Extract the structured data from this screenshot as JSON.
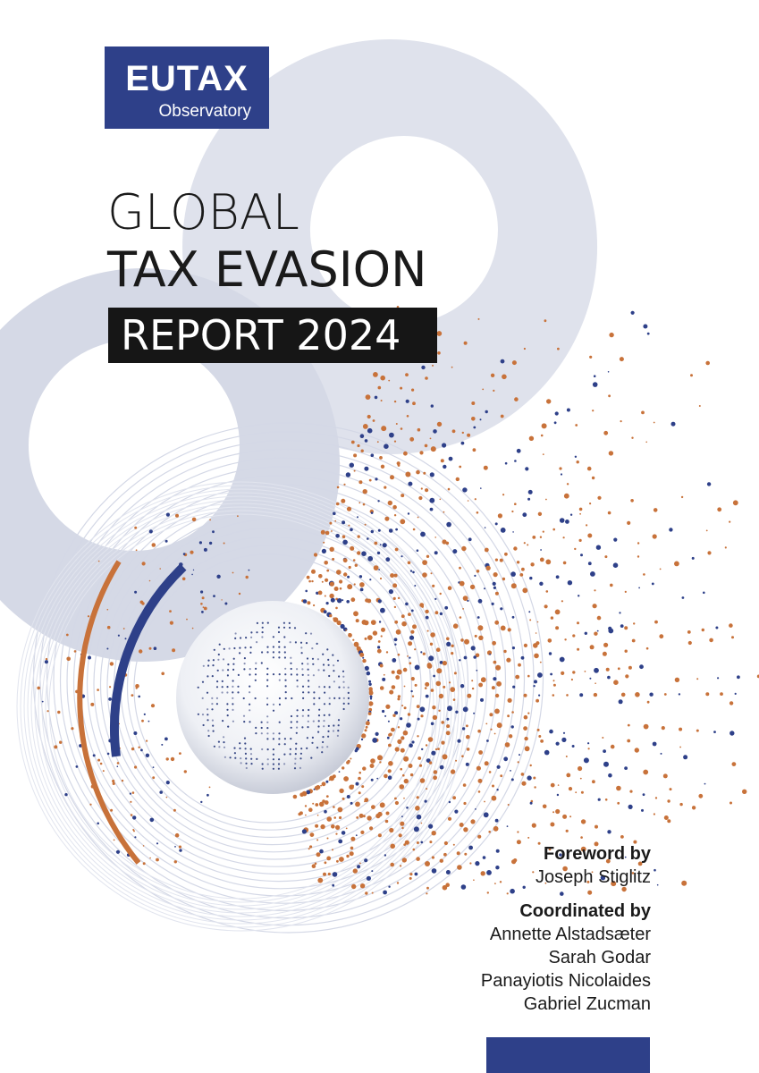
{
  "logo": {
    "main": "EUTAX",
    "sub": "Observatory"
  },
  "title": {
    "line1": "GLOBAL",
    "line2": "TAX EVASION",
    "line3": "REPORT 2024"
  },
  "credits": {
    "foreword_heading": "Foreword by",
    "foreword_name": "Joseph Stiglitz",
    "coordinated_heading": "Coordinated by",
    "coordinators": [
      "Annette Alstadsæter",
      "Sarah Godar",
      "Panayiotis Nicolaides",
      "Gabriel Zucman"
    ]
  },
  "colors": {
    "navy": "#2e4089",
    "orange": "#c8723a",
    "ring": "#d4d8e6",
    "title_box": "#161616"
  }
}
